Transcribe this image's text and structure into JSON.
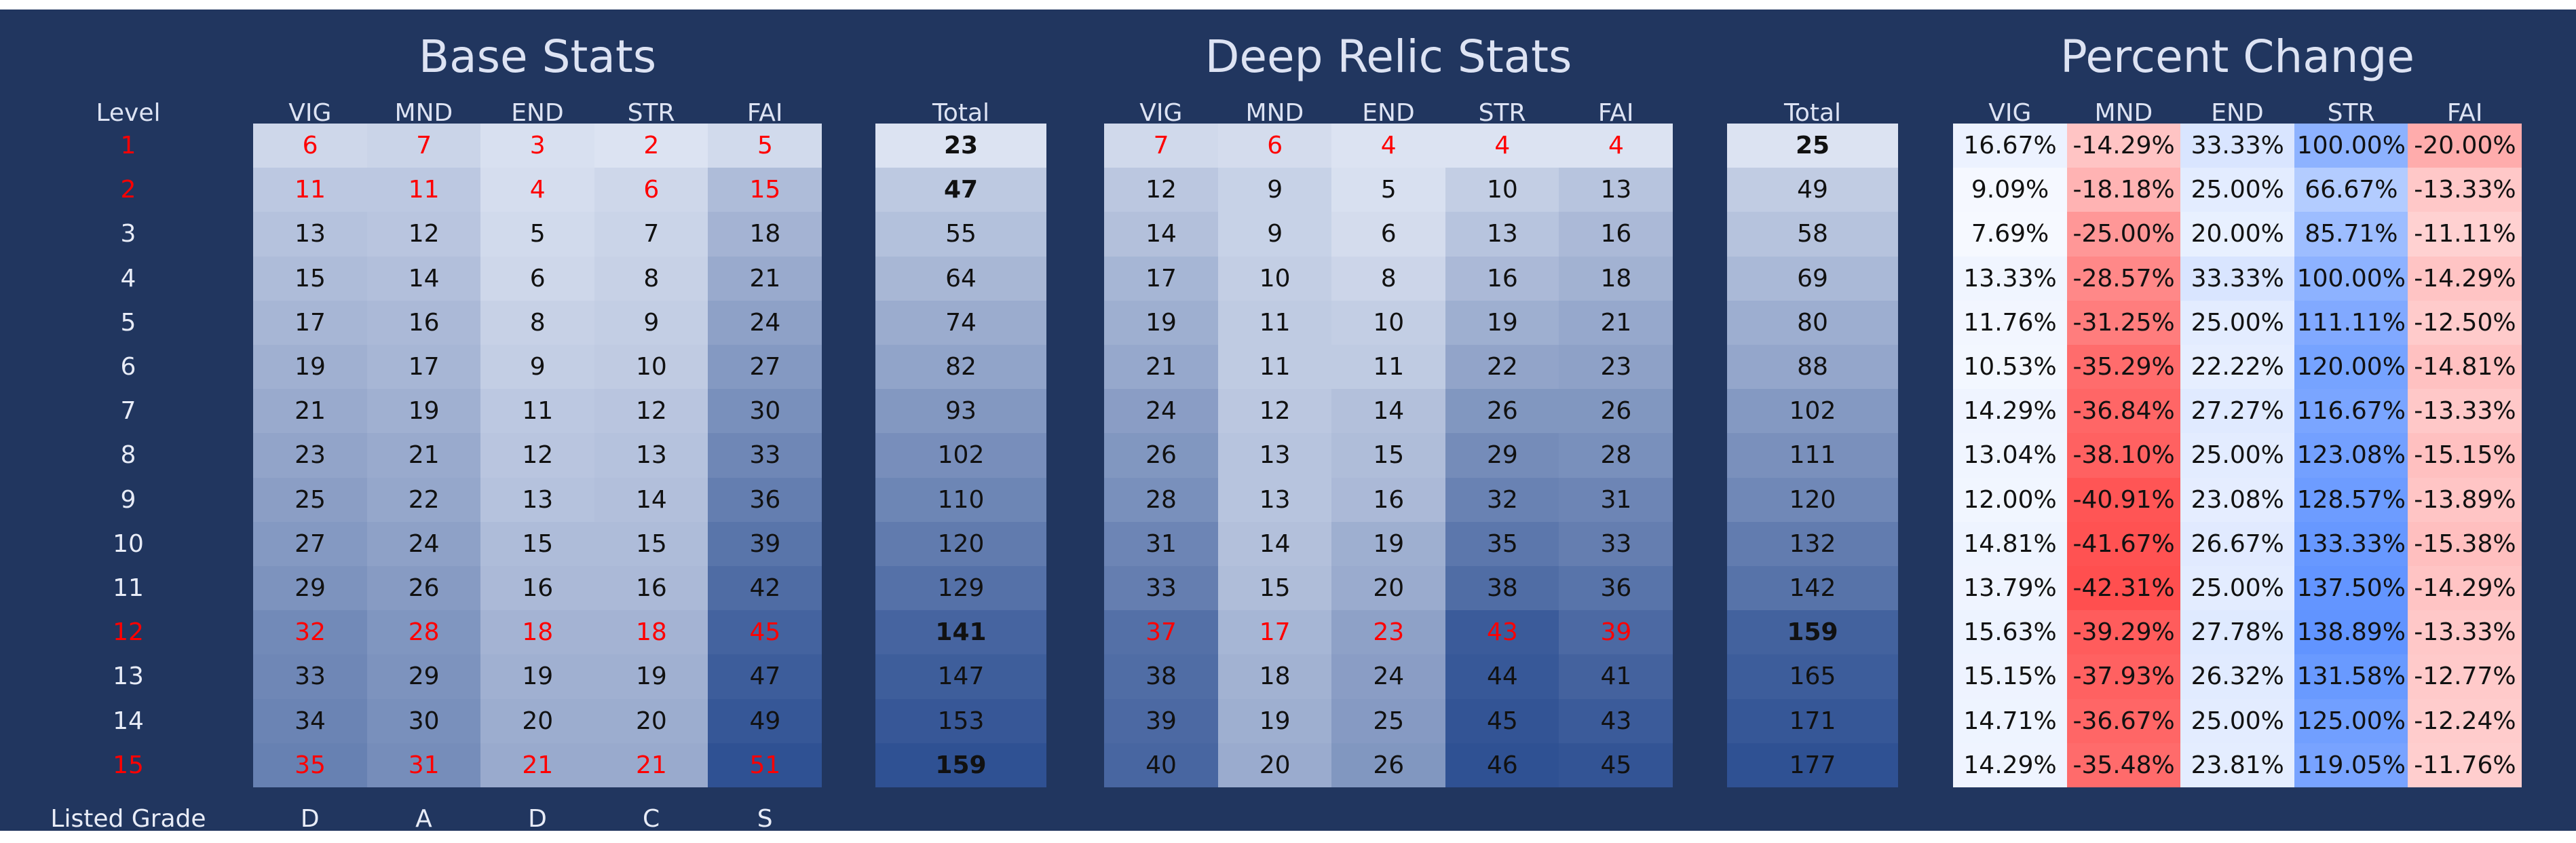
{
  "chart_data": {
    "type": "table",
    "level_header": "Level",
    "levels": [
      1,
      2,
      3,
      4,
      5,
      6,
      7,
      8,
      9,
      10,
      11,
      12,
      13,
      14,
      15
    ],
    "highlight_levels": [
      1,
      2,
      12,
      15
    ],
    "grade_label": "Listed Grade",
    "grades": [
      "D",
      "A",
      "D",
      "C",
      "S"
    ],
    "stat_headers": [
      "VIG",
      "MND",
      "END",
      "STR",
      "FAI"
    ],
    "total_header": "Total",
    "base": {
      "title": "Base Stats",
      "highlight_levels": [
        1,
        2,
        12,
        15
      ],
      "rows": [
        [
          6,
          7,
          3,
          2,
          5
        ],
        [
          11,
          11,
          4,
          6,
          15
        ],
        [
          13,
          12,
          5,
          7,
          18
        ],
        [
          15,
          14,
          6,
          8,
          21
        ],
        [
          17,
          16,
          8,
          9,
          24
        ],
        [
          19,
          17,
          9,
          10,
          27
        ],
        [
          21,
          19,
          11,
          12,
          30
        ],
        [
          23,
          21,
          12,
          13,
          33
        ],
        [
          25,
          22,
          13,
          14,
          36
        ],
        [
          27,
          24,
          15,
          15,
          39
        ],
        [
          29,
          26,
          16,
          16,
          42
        ],
        [
          32,
          28,
          18,
          18,
          45
        ],
        [
          33,
          29,
          19,
          19,
          47
        ],
        [
          34,
          30,
          20,
          20,
          49
        ],
        [
          35,
          31,
          21,
          21,
          51
        ]
      ],
      "totals": [
        23,
        47,
        55,
        64,
        74,
        82,
        93,
        102,
        110,
        120,
        129,
        141,
        147,
        153,
        159
      ]
    },
    "deep": {
      "title": "Deep Relic Stats",
      "highlight_levels": [
        1,
        12
      ],
      "rows": [
        [
          7,
          6,
          4,
          4,
          4
        ],
        [
          12,
          9,
          5,
          10,
          13
        ],
        [
          14,
          9,
          6,
          13,
          16
        ],
        [
          17,
          10,
          8,
          16,
          18
        ],
        [
          19,
          11,
          10,
          19,
          21
        ],
        [
          21,
          11,
          11,
          22,
          23
        ],
        [
          24,
          12,
          14,
          26,
          26
        ],
        [
          26,
          13,
          15,
          29,
          28
        ],
        [
          28,
          13,
          16,
          32,
          31
        ],
        [
          31,
          14,
          19,
          35,
          33
        ],
        [
          33,
          15,
          20,
          38,
          36
        ],
        [
          37,
          17,
          23,
          43,
          39
        ],
        [
          38,
          18,
          24,
          44,
          41
        ],
        [
          39,
          19,
          25,
          45,
          43
        ],
        [
          40,
          20,
          26,
          46,
          45
        ]
      ],
      "totals": [
        25,
        49,
        58,
        69,
        80,
        88,
        102,
        111,
        120,
        132,
        142,
        159,
        165,
        171,
        177
      ]
    },
    "percent": {
      "title": "Percent Change",
      "rows": [
        [
          "16.67%",
          "-14.29%",
          "33.33%",
          "100.00%",
          "-20.00%"
        ],
        [
          "9.09%",
          "-18.18%",
          "25.00%",
          "66.67%",
          "-13.33%"
        ],
        [
          "7.69%",
          "-25.00%",
          "20.00%",
          "85.71%",
          "-11.11%"
        ],
        [
          "13.33%",
          "-28.57%",
          "33.33%",
          "100.00%",
          "-14.29%"
        ],
        [
          "11.76%",
          "-31.25%",
          "25.00%",
          "111.11%",
          "-12.50%"
        ],
        [
          "10.53%",
          "-35.29%",
          "22.22%",
          "120.00%",
          "-14.81%"
        ],
        [
          "14.29%",
          "-36.84%",
          "27.27%",
          "116.67%",
          "-13.33%"
        ],
        [
          "13.04%",
          "-38.10%",
          "25.00%",
          "123.08%",
          "-15.15%"
        ],
        [
          "12.00%",
          "-40.91%",
          "23.08%",
          "128.57%",
          "-13.89%"
        ],
        [
          "14.81%",
          "-41.67%",
          "26.67%",
          "133.33%",
          "-15.38%"
        ],
        [
          "13.79%",
          "-42.31%",
          "25.00%",
          "137.50%",
          "-14.29%"
        ],
        [
          "15.63%",
          "-39.29%",
          "27.78%",
          "138.89%",
          "-13.33%"
        ],
        [
          "15.15%",
          "-37.93%",
          "26.32%",
          "131.58%",
          "-12.77%"
        ],
        [
          "14.71%",
          "-36.67%",
          "25.00%",
          "125.00%",
          "-12.24%"
        ],
        [
          "14.29%",
          "-35.48%",
          "23.81%",
          "119.05%",
          "-11.76%"
        ]
      ]
    },
    "colors": {
      "background": "#21365f",
      "scale_light": "#dce3f2",
      "scale_dark": "#2f5193",
      "negative": "#ff4f4f",
      "positive": "#6194ff",
      "neutral": "#ffffff",
      "highlight_text": "#ff0000"
    }
  }
}
